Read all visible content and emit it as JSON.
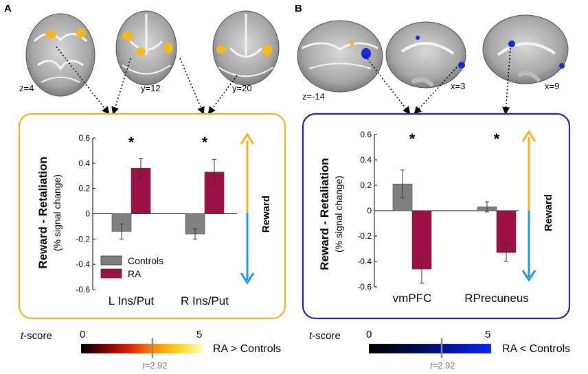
{
  "panels": [
    {
      "letter": "A",
      "slices": [
        "z=4",
        "y=12",
        "y=20"
      ],
      "blob_color": "#f2b81e",
      "frame_color": "#f0b323",
      "scale": {
        "label_prefix": "t",
        "label_suffix": "-score",
        "min_label": "0",
        "max_label": "5",
        "threshold_prefix": "t",
        "threshold_value": "=2.92",
        "contrast": "RA > Controls",
        "stops": [
          "#000000",
          "#7a0000",
          "#e02000",
          "#ff8c00",
          "#ffd21a",
          "#ffffb0"
        ]
      }
    },
    {
      "letter": "B",
      "slices": [
        "z=-14",
        "x=3",
        "x=9"
      ],
      "blob_color": "#1726d6",
      "frame_color": "#1d22a8",
      "scale": {
        "label_prefix": "t",
        "label_suffix": "-score",
        "min_label": "0",
        "max_label": "5",
        "threshold_prefix": "t",
        "threshold_value": "=2.92",
        "contrast": "RA < Controls",
        "stops": [
          "#000000",
          "#000a40",
          "#0014a8",
          "#0a28f0"
        ]
      }
    }
  ],
  "arrow_label": "Reward",
  "arrow_colors": {
    "up": "#f5b31c",
    "down": "#1f9ad6"
  },
  "chart_data": [
    {
      "type": "bar",
      "ylabel_main": "Reward - Retaliation",
      "ylabel_sub": "(% signal change)",
      "categories": [
        "L Ins/Put",
        "R Ins/Put"
      ],
      "ylim": [
        -0.6,
        0.6
      ],
      "yticks": [
        "0.6",
        "0.4",
        "0.2",
        "0",
        "-0.2",
        "-0.4",
        "-0.6"
      ],
      "series": [
        {
          "name": "Controls",
          "color": "#808080",
          "values": [
            -0.14,
            -0.16
          ],
          "errors": [
            0.06,
            0.04
          ]
        },
        {
          "name": "RA",
          "color": "#9c1046",
          "values": [
            0.36,
            0.33
          ],
          "errors": [
            0.08,
            0.1
          ]
        }
      ],
      "significance": [
        "*",
        "*"
      ],
      "legend": [
        "Controls",
        "RA"
      ]
    },
    {
      "type": "bar",
      "ylabel_main": "Reward - Retaliation",
      "ylabel_sub": "(% signal change)",
      "categories": [
        "vmPFC",
        "RPrecuneus"
      ],
      "ylim": [
        -0.6,
        0.6
      ],
      "yticks": [
        "0.6",
        "0.4",
        "0.2",
        "0",
        "-0.2",
        "-0.4",
        "-0.6"
      ],
      "series": [
        {
          "name": "Controls",
          "color": "#808080",
          "values": [
            0.21,
            0.03
          ],
          "errors": [
            0.11,
            0.04
          ]
        },
        {
          "name": "RA",
          "color": "#9c1046",
          "values": [
            -0.46,
            -0.33
          ],
          "errors": [
            0.11,
            0.07
          ]
        }
      ],
      "significance": [
        "*",
        "*"
      ]
    }
  ]
}
